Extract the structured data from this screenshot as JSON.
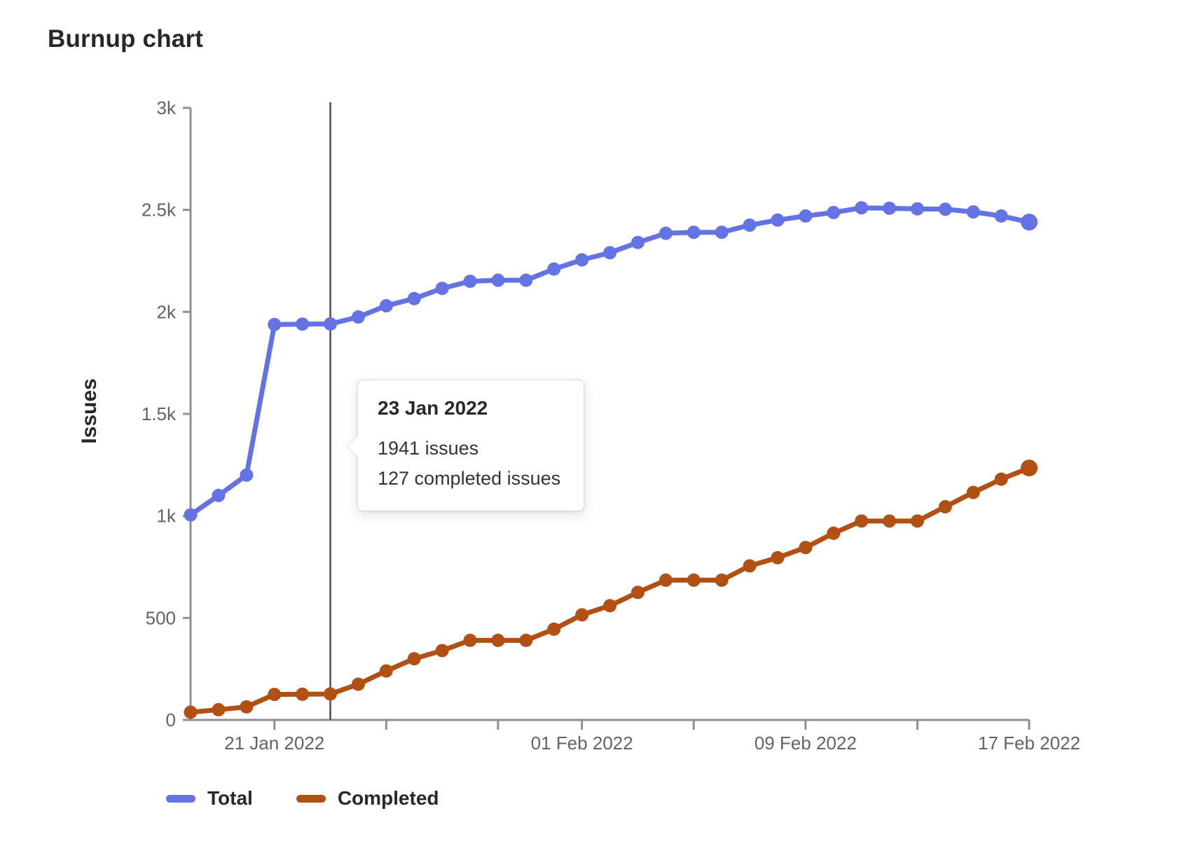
{
  "page": {
    "title": "Burnup chart"
  },
  "colors": {
    "total": "#6373e6",
    "completed": "#b25014",
    "axis": "#8e8e96",
    "tick_text": "#62626a",
    "today_line": "#4c4c52",
    "heading_text": "#28272d"
  },
  "tooltip": {
    "title": "23 Jan 2022",
    "lines": [
      "1941 issues",
      "127 completed issues"
    ]
  },
  "legend": {
    "items": [
      {
        "label": "Total",
        "color_key": "total"
      },
      {
        "label": "Completed",
        "color_key": "completed"
      }
    ]
  },
  "chart_data": {
    "type": "line",
    "title": "Burnup chart",
    "xlabel": "",
    "ylabel": "Issues",
    "ylim": [
      0,
      3000
    ],
    "grid": false,
    "legend_position": "bottom-left",
    "marker_date": "23 Jan 2022",
    "y_ticks": [
      {
        "value": 0,
        "label": "0"
      },
      {
        "value": 500,
        "label": "500"
      },
      {
        "value": 1000,
        "label": "1k"
      },
      {
        "value": 1500,
        "label": "1.5k"
      },
      {
        "value": 2000,
        "label": "2k"
      },
      {
        "value": 2500,
        "label": "2.5k"
      },
      {
        "value": 3000,
        "label": "3k"
      }
    ],
    "x": [
      "18 Jan 2022",
      "19 Jan 2022",
      "20 Jan 2022",
      "21 Jan 2022",
      "22 Jan 2022",
      "23 Jan 2022",
      "24 Jan 2022",
      "25 Jan 2022",
      "26 Jan 2022",
      "27 Jan 2022",
      "28 Jan 2022",
      "29 Jan 2022",
      "30 Jan 2022",
      "31 Jan 2022",
      "01 Feb 2022",
      "02 Feb 2022",
      "03 Feb 2022",
      "04 Feb 2022",
      "05 Feb 2022",
      "06 Feb 2022",
      "07 Feb 2022",
      "08 Feb 2022",
      "09 Feb 2022",
      "10 Feb 2022",
      "11 Feb 2022",
      "12 Feb 2022",
      "13 Feb 2022",
      "14 Feb 2022",
      "15 Feb 2022",
      "16 Feb 2022",
      "17 Feb 2022"
    ],
    "x_tick_dates": [
      "21 Jan 2022",
      "25 Jan 2022",
      "29 Jan 2022",
      "01 Feb 2022",
      "05 Feb 2022",
      "09 Feb 2022",
      "13 Feb 2022",
      "17 Feb 2022"
    ],
    "x_label_dates": [
      "21 Jan 2022",
      "01 Feb 2022",
      "09 Feb 2022",
      "17 Feb 2022"
    ],
    "series": [
      {
        "name": "Total",
        "color_key": "total",
        "values": [
          1005,
          1100,
          1200,
          1938,
          1940,
          1941,
          1975,
          2030,
          2065,
          2115,
          2150,
          2155,
          2155,
          2210,
          2255,
          2290,
          2340,
          2385,
          2390,
          2390,
          2425,
          2450,
          2470,
          2487,
          2510,
          2508,
          2505,
          2503,
          2490,
          2470,
          2440
        ]
      },
      {
        "name": "Completed",
        "color_key": "completed",
        "values": [
          38,
          50,
          64,
          125,
          126,
          127,
          175,
          240,
          300,
          340,
          390,
          390,
          390,
          445,
          515,
          560,
          625,
          685,
          685,
          685,
          755,
          795,
          845,
          915,
          975,
          975,
          975,
          1045,
          1115,
          1180,
          1235
        ]
      }
    ]
  }
}
